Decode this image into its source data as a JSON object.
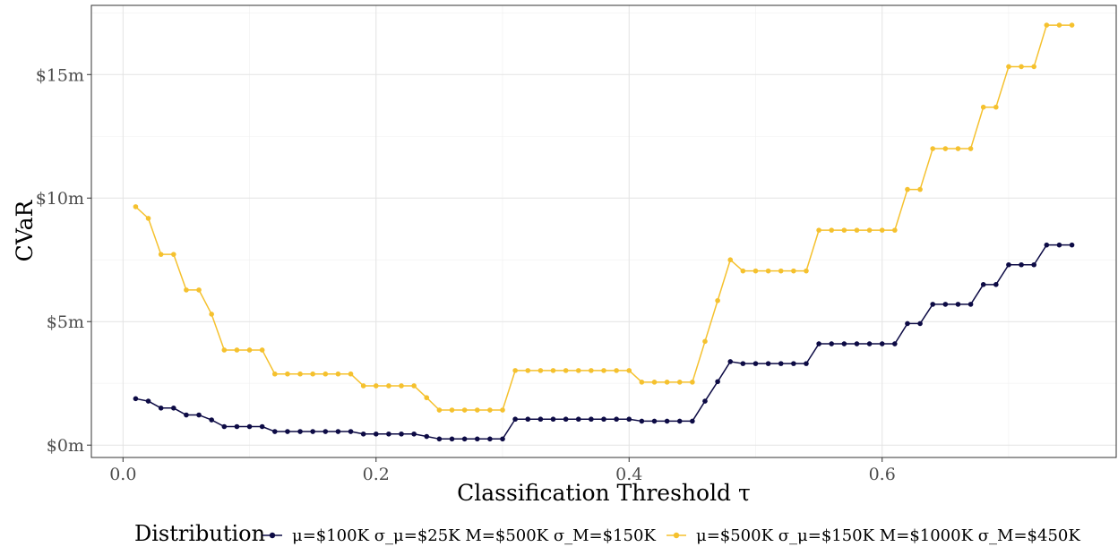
{
  "chart_data": {
    "type": "line",
    "title": "",
    "xlabel": "Classification Threshold τ",
    "ylabel": "CVaR",
    "xlim": [
      -0.025,
      0.785
    ],
    "ylim": [
      -0.5,
      17.8
    ],
    "x_ticks": [
      {
        "value": 0.0,
        "label": "0.0"
      },
      {
        "value": 0.2,
        "label": "0.2"
      },
      {
        "value": 0.4,
        "label": "0.4"
      },
      {
        "value": 0.6,
        "label": "0.6"
      }
    ],
    "y_ticks": [
      {
        "value": 0,
        "label": "$0m"
      },
      {
        "value": 5,
        "label": "$5m"
      },
      {
        "value": 10,
        "label": "$10m"
      },
      {
        "value": 15,
        "label": "$15m"
      }
    ],
    "grid": true,
    "legend": {
      "title": "Distribution",
      "placement": "bottom",
      "items": [
        {
          "label": "μ=$100K σ_μ=$25K M=$500K σ_M=$150K",
          "color": "#0d0b45"
        },
        {
          "label": "μ=$500K σ_μ=$150K M=$1000K σ_M=$450K",
          "color": "#f5c12e"
        }
      ]
    },
    "x": [
      0.01,
      0.02,
      0.03,
      0.04,
      0.05,
      0.06,
      0.07,
      0.08,
      0.09,
      0.1,
      0.11,
      0.12,
      0.13,
      0.14,
      0.15,
      0.16,
      0.17,
      0.18,
      0.19,
      0.2,
      0.21,
      0.22,
      0.23,
      0.24,
      0.25,
      0.26,
      0.27,
      0.28,
      0.29,
      0.3,
      0.31,
      0.32,
      0.33,
      0.34,
      0.35,
      0.36,
      0.37,
      0.38,
      0.39,
      0.4,
      0.41,
      0.42,
      0.43,
      0.44,
      0.45,
      0.46,
      0.47,
      0.48,
      0.49,
      0.5,
      0.51,
      0.52,
      0.53,
      0.54,
      0.55,
      0.56,
      0.57,
      0.58,
      0.59,
      0.6,
      0.61,
      0.62,
      0.63,
      0.64,
      0.65,
      0.66,
      0.67,
      0.68,
      0.69,
      0.7,
      0.71,
      0.72,
      0.73,
      0.74,
      0.75
    ],
    "series": [
      {
        "name": "μ=$100K σ_μ=$25K M=$500K σ_M=$150K",
        "color": "#0d0b45",
        "values": [
          1.88,
          1.78,
          1.5,
          1.5,
          1.22,
          1.22,
          1.02,
          0.75,
          0.75,
          0.75,
          0.75,
          0.55,
          0.55,
          0.55,
          0.55,
          0.55,
          0.55,
          0.55,
          0.45,
          0.45,
          0.45,
          0.45,
          0.45,
          0.35,
          0.25,
          0.25,
          0.25,
          0.25,
          0.25,
          0.25,
          1.05,
          1.05,
          1.05,
          1.05,
          1.05,
          1.05,
          1.05,
          1.05,
          1.05,
          1.05,
          0.97,
          0.97,
          0.97,
          0.97,
          0.97,
          1.78,
          2.57,
          3.38,
          3.3,
          3.3,
          3.3,
          3.3,
          3.3,
          3.3,
          4.1,
          4.1,
          4.1,
          4.1,
          4.1,
          4.1,
          4.1,
          4.92,
          4.92,
          5.7,
          5.7,
          5.7,
          5.7,
          6.5,
          6.5,
          7.3,
          7.3,
          7.3,
          8.1,
          8.1,
          8.1
        ]
      },
      {
        "name": "μ=$500K σ_μ=$150K M=$1000K σ_M=$450K",
        "color": "#f5c12e",
        "values": [
          9.65,
          9.18,
          7.72,
          7.72,
          6.28,
          6.28,
          5.3,
          3.85,
          3.85,
          3.85,
          3.85,
          2.88,
          2.88,
          2.88,
          2.88,
          2.88,
          2.88,
          2.88,
          2.4,
          2.4,
          2.4,
          2.4,
          2.4,
          1.92,
          1.42,
          1.42,
          1.42,
          1.42,
          1.42,
          1.42,
          3.02,
          3.02,
          3.02,
          3.02,
          3.02,
          3.02,
          3.02,
          3.02,
          3.02,
          3.02,
          2.55,
          2.55,
          2.55,
          2.55,
          2.55,
          4.2,
          5.85,
          7.5,
          7.05,
          7.05,
          7.05,
          7.05,
          7.05,
          7.05,
          8.7,
          8.7,
          8.7,
          8.7,
          8.7,
          8.7,
          8.7,
          10.35,
          10.35,
          12.0,
          12.0,
          12.0,
          12.0,
          13.68,
          13.68,
          15.32,
          15.32,
          15.32,
          17.0,
          17.0,
          17.0
        ]
      }
    ]
  }
}
